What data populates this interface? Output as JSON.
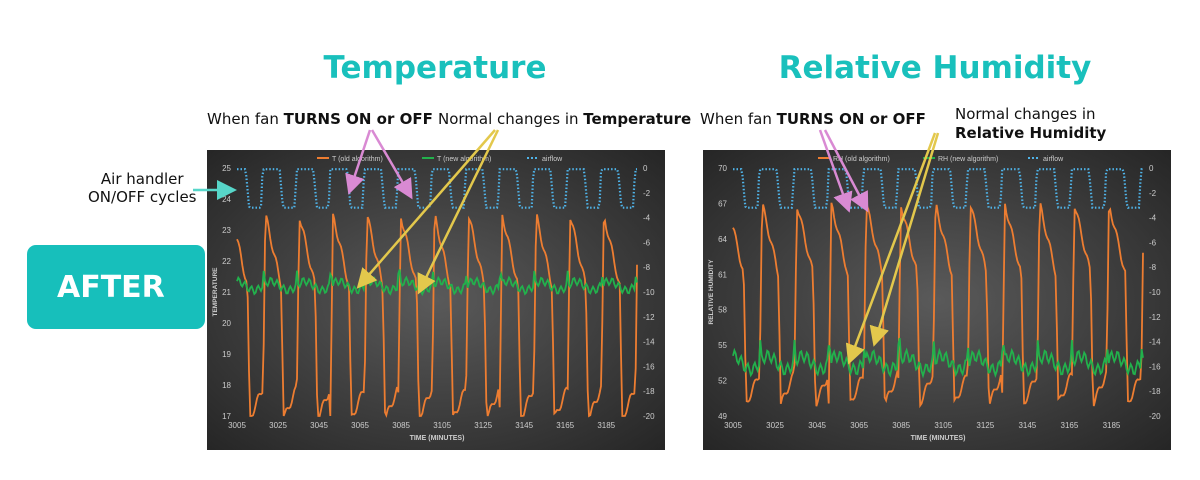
{
  "titles": {
    "temperature": "Temperature",
    "humidity": "Relative Humidity"
  },
  "annotations": {
    "air_handler_line1": "Air handler",
    "air_handler_line2": "ON/OFF cycles",
    "fan_prefix": "When fan ",
    "fan_bold": "TURNS ON or OFF",
    "normal_prefix": "Normal changes in ",
    "normal_bold_temp": "Temperature",
    "normal_rh_line1": "Normal changes in",
    "normal_rh_line2": "Relative Humidity"
  },
  "badge": {
    "label": "AFTER"
  },
  "colors": {
    "teal": "#19c0bc",
    "old": "#ed7d31",
    "new": "#22b14c",
    "airflow": "#4fb3e8",
    "bg": "#3c3c3c",
    "arrow_pink": "#d98ad3",
    "arrow_yellow": "#e3c84c",
    "arrow_teal": "#57d6c9"
  },
  "chart_data": [
    {
      "type": "line",
      "title": "",
      "xlabel": "TIME (MINUTES)",
      "ylabel": "TEMPERATURE",
      "y2label": "",
      "x_ticks": [
        "3005",
        "3025",
        "3045",
        "3065",
        "3085",
        "3105",
        "3125",
        "3145",
        "3165",
        "3185"
      ],
      "xlim": [
        3005,
        3200
      ],
      "ylim": [
        17,
        25
      ],
      "y_ticks": [
        "17",
        "18",
        "19",
        "20",
        "21",
        "22",
        "23",
        "24",
        "25"
      ],
      "y2lim": [
        -20,
        0
      ],
      "y2_ticks": [
        "0",
        "-2",
        "-4",
        "-6",
        "-8",
        "-10",
        "-12",
        "-14",
        "-16",
        "-18",
        "-20"
      ],
      "legend_position": "top-center",
      "series": [
        {
          "name": "T (old algorithm)",
          "style": "solid",
          "axis": "left",
          "pattern": "temp_old",
          "base": 20.2,
          "amp": 3.3
        },
        {
          "name": "T (new algorithm)",
          "style": "solid",
          "axis": "left",
          "pattern": "temp_new",
          "base": 21.2,
          "amp": 0.3
        },
        {
          "name": "airflow",
          "style": "dotted",
          "axis": "right",
          "pattern": "airflow",
          "high": -0.1,
          "low": -3.2
        }
      ]
    },
    {
      "type": "line",
      "title": "",
      "xlabel": "TIME (MINUTES)",
      "ylabel": "RELATIVE HUMIDITY",
      "y2label": "",
      "x_ticks": [
        "3005",
        "3025",
        "3045",
        "3065",
        "3085",
        "3105",
        "3125",
        "3145",
        "3165",
        "3185"
      ],
      "xlim": [
        3005,
        3200
      ],
      "ylim": [
        49,
        70
      ],
      "y_ticks": [
        "49",
        "52",
        "55",
        "58",
        "61",
        "64",
        "67",
        "70"
      ],
      "y2lim": [
        -20,
        0
      ],
      "y2_ticks": [
        "0",
        "-2",
        "-4",
        "-6",
        "-8",
        "-10",
        "-12",
        "-14",
        "-16",
        "-18",
        "-20"
      ],
      "legend_position": "top-center",
      "series": [
        {
          "name": "RH (old algorithm)",
          "style": "solid",
          "axis": "left",
          "pattern": "rh_old",
          "base": 58.5,
          "amp": 8.5
        },
        {
          "name": "RH (new algorithm)",
          "style": "solid",
          "axis": "left",
          "pattern": "rh_new",
          "base": 53.5,
          "amp": 1.2
        },
        {
          "name": "airflow",
          "style": "dotted",
          "axis": "right",
          "pattern": "airflow",
          "high": -0.1,
          "low": -3.2
        }
      ]
    }
  ]
}
